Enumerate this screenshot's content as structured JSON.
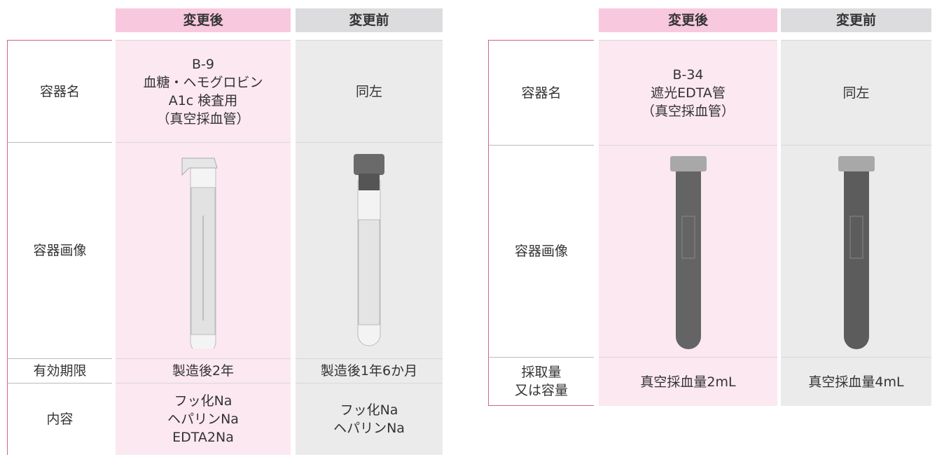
{
  "tables": [
    {
      "headers": [
        "変更後",
        "変更前"
      ],
      "rows": [
        {
          "label": [
            "容器名"
          ],
          "after": [
            "B-9",
            "血糖・ヘモグロビン",
            "A1c 検査用",
            "（真空採血管）"
          ],
          "before": [
            "同左"
          ]
        },
        {
          "label": [
            "容器画像"
          ]
        },
        {
          "label": [
            "有効期限"
          ],
          "after": [
            "製造後2年"
          ],
          "before": [
            "製造後1年6か月"
          ]
        },
        {
          "label": [
            "内容"
          ],
          "after": [
            "フッ化Na",
            "ヘパリンNa",
            "EDTA2Na"
          ],
          "before": [
            "フッ化Na",
            "ヘパリンNa"
          ]
        }
      ]
    },
    {
      "headers": [
        "変更後",
        "変更前"
      ],
      "rows": [
        {
          "label": [
            "容器名"
          ],
          "after": [
            "B-34",
            "遮光EDTA管",
            "（真空採血管）"
          ],
          "before": [
            "同左"
          ]
        },
        {
          "label": [
            "容器画像"
          ]
        },
        {
          "label": [
            "採取量",
            "又は容量"
          ],
          "after": [
            "真空採血量2mL"
          ],
          "before": [
            "真空採血量4mL"
          ]
        }
      ]
    }
  ]
}
